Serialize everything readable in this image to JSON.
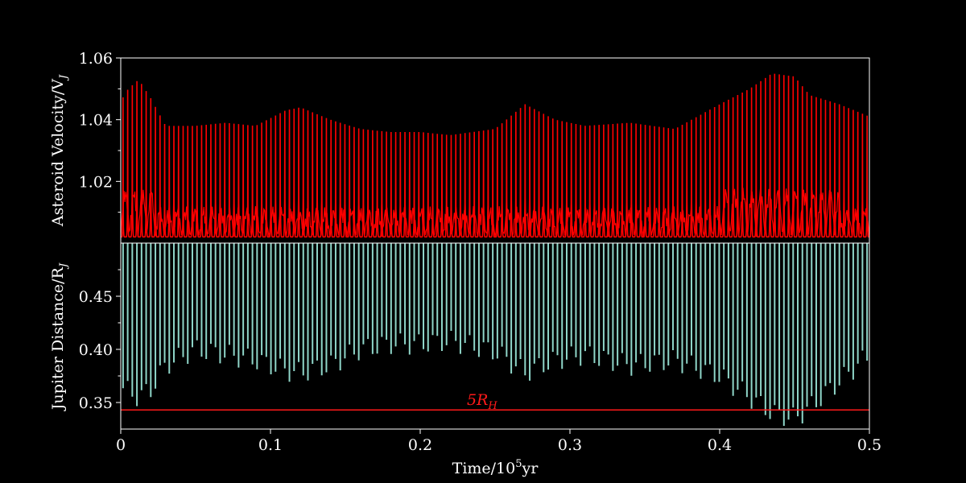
{
  "chart_data": [
    {
      "type": "line",
      "panel": "top",
      "ylabel": "Asteroid Velocity/V",
      "ylabel_sub": "J",
      "xlim": [
        0,
        0.5
      ],
      "ylim": [
        1.0,
        1.06
      ],
      "yticks": [
        1.02,
        1.04,
        1.06
      ],
      "ytick_labels": [
        "1.02",
        "1.04",
        "1.06"
      ],
      "color": "#ff0000",
      "baseline": 1.002,
      "peak_envelope": {
        "x": [
          0,
          0.005,
          0.012,
          0.02,
          0.03,
          0.05,
          0.07,
          0.09,
          0.11,
          0.12,
          0.14,
          0.16,
          0.18,
          0.2,
          0.22,
          0.25,
          0.27,
          0.29,
          0.31,
          0.34,
          0.37,
          0.4,
          0.42,
          0.435,
          0.45,
          0.46,
          0.48,
          0.5
        ],
        "y": [
          1.046,
          1.05,
          1.053,
          1.047,
          1.038,
          1.038,
          1.039,
          1.038,
          1.043,
          1.044,
          1.04,
          1.037,
          1.036,
          1.036,
          1.035,
          1.037,
          1.045,
          1.04,
          1.038,
          1.039,
          1.037,
          1.045,
          1.05,
          1.055,
          1.054,
          1.048,
          1.045,
          1.041
        ]
      }
    },
    {
      "type": "line",
      "panel": "bottom",
      "xlabel": "Time/10",
      "xlabel_sup": "5",
      "xlabel_unit": "yr",
      "ylabel": "Jupiter Distance/R",
      "ylabel_sub": "J",
      "xlim": [
        0,
        0.5
      ],
      "ylim": [
        0.325,
        0.5
      ],
      "yticks": [
        0.35,
        0.4,
        0.45
      ],
      "ytick_labels": [
        "0.35",
        "0.40",
        "0.45"
      ],
      "xticks": [
        0,
        0.1,
        0.2,
        0.3,
        0.4,
        0.5
      ],
      "xtick_labels": [
        "0",
        "0.1",
        "0.2",
        "0.3",
        "0.4",
        "0.5"
      ],
      "color": "#8fd6c9",
      "trough_envelope": {
        "x": [
          0,
          0.005,
          0.012,
          0.02,
          0.03,
          0.05,
          0.07,
          0.09,
          0.11,
          0.12,
          0.14,
          0.16,
          0.18,
          0.2,
          0.22,
          0.25,
          0.27,
          0.29,
          0.31,
          0.34,
          0.37,
          0.4,
          0.42,
          0.435,
          0.45,
          0.46,
          0.48,
          0.5
        ],
        "y": [
          0.365,
          0.36,
          0.355,
          0.362,
          0.385,
          0.4,
          0.395,
          0.39,
          0.38,
          0.378,
          0.385,
          0.4,
          0.405,
          0.405,
          0.408,
          0.398,
          0.378,
          0.39,
          0.395,
          0.385,
          0.39,
          0.375,
          0.355,
          0.34,
          0.335,
          0.345,
          0.37,
          0.395
        ]
      },
      "hline": {
        "y": 0.343,
        "color": "#ff1a1a",
        "label": "5R",
        "label_sub": "H",
        "label_x": 0.25
      }
    }
  ]
}
